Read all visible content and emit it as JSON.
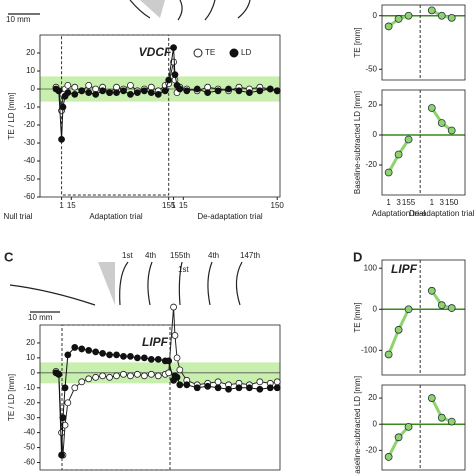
{
  "chart_data": [
    {
      "type": "line",
      "title": "VDCF",
      "ylabel": "TE / LD [mm]",
      "xlim": [
        -20,
        325
      ],
      "ylim": [
        -60,
        30
      ],
      "yticks": [
        -60,
        -50,
        -40,
        -30,
        -20,
        -10,
        0,
        10,
        20
      ],
      "xticks": [
        {
          "value": 11,
          "label": "1"
        },
        {
          "value": 25,
          "label": "15"
        },
        {
          "value": 165,
          "label": "155"
        },
        {
          "value": 172,
          "label": "1"
        },
        {
          "value": 186,
          "label": "15"
        },
        {
          "value": 321,
          "label": "150"
        }
      ],
      "xlabels": [
        "Null trial",
        "Adaptation trial",
        "De-adaptation trial"
      ],
      "band": [
        -7,
        7
      ],
      "band_color": "#c9efae",
      "legend": "top-right",
      "x": [
        3,
        7,
        11,
        13,
        16,
        20,
        30,
        40,
        50,
        60,
        70,
        80,
        90,
        100,
        110,
        120,
        130,
        140,
        150,
        160,
        165,
        172,
        174,
        177,
        181,
        191,
        206,
        221,
        236,
        251,
        266,
        281,
        296,
        311,
        321
      ],
      "series": [
        {
          "name": "TE",
          "color": "#222",
          "fill": "#ffffff",
          "values": [
            1,
            -1,
            -12,
            -3,
            0,
            2,
            1,
            -1,
            2,
            0,
            1,
            -2,
            1,
            0,
            2,
            -1,
            0,
            1,
            -1,
            2,
            3,
            15,
            5,
            -2,
            1,
            0,
            -1,
            1,
            0,
            -1,
            1,
            0,
            1,
            0,
            -1
          ]
        },
        {
          "name": "LD",
          "color": "#111",
          "fill": "#111111",
          "values": [
            0,
            -1,
            -28,
            -10,
            -4,
            -2,
            -3,
            -1,
            -2,
            -3,
            -1,
            -2,
            -2,
            -1,
            -3,
            -2,
            -1,
            -2,
            -3,
            -1,
            5,
            23,
            8,
            2,
            0,
            -1,
            0,
            -2,
            -1,
            0,
            -1,
            -2,
            -1,
            0,
            -1
          ]
        }
      ]
    },
    {
      "type": "dots",
      "ylabel": "TE [mm]",
      "ylim": [
        -60,
        10
      ],
      "yticks": [
        -50,
        0
      ],
      "color": "#8fd46a",
      "values": [
        -10,
        -3,
        0,
        5,
        0,
        -2
      ]
    },
    {
      "type": "dots",
      "ylabel": "Baseline-subtracted LD [mm]",
      "ylim": [
        -40,
        30
      ],
      "yticks": [
        -20,
        0,
        20
      ],
      "color": "#8fd46a",
      "categories": [
        "1",
        "3",
        "155",
        "1",
        "3",
        "150"
      ],
      "xlabels": [
        "Adaptation trial",
        "De-adaptation trial"
      ],
      "values": [
        -25,
        -13,
        -3,
        18,
        8,
        3
      ]
    },
    {
      "type": "line",
      "title": "LIPF",
      "ylabel": "TE / LD [mm]",
      "xlim": [
        -20,
        325
      ],
      "ylim": [
        -65,
        32
      ],
      "yticks": [
        -60,
        -50,
        -40,
        -30,
        -20,
        -10,
        0,
        10,
        20
      ],
      "band": [
        -7,
        7
      ],
      "band_color": "#c9efae",
      "x": [
        3,
        7,
        11,
        13,
        16,
        20,
        30,
        40,
        50,
        60,
        70,
        80,
        90,
        100,
        110,
        120,
        130,
        140,
        150,
        160,
        165,
        172,
        174,
        177,
        181,
        191,
        206,
        221,
        236,
        251,
        266,
        281,
        296,
        311,
        321
      ],
      "series": [
        {
          "name": "TE",
          "color": "#222",
          "fill": "#ffffff",
          "values": [
            1,
            -1,
            -40,
            -55,
            -35,
            -20,
            -10,
            -6,
            -4,
            -3,
            -2,
            -3,
            -2,
            -1,
            -2,
            -1,
            -2,
            -1,
            -2,
            -1,
            0,
            44,
            25,
            10,
            2,
            -5,
            -8,
            -7,
            -6,
            -8,
            -7,
            -8,
            -6,
            -7,
            -6
          ]
        },
        {
          "name": "LD",
          "color": "#111",
          "fill": "#111111",
          "values": [
            0,
            -1,
            -55,
            -30,
            -10,
            12,
            17,
            16,
            15,
            14,
            13,
            12,
            12,
            11,
            11,
            10,
            10,
            9,
            9,
            8,
            8,
            -5,
            -2,
            -3,
            -8,
            -8,
            -10,
            -9,
            -10,
            -11,
            -10,
            -10,
            -11,
            -10,
            -10
          ]
        }
      ]
    },
    {
      "type": "dots",
      "title": "LIPF",
      "ylabel": "TE [mm]",
      "ylim": [
        -160,
        120
      ],
      "yticks": [
        -100,
        0,
        100
      ],
      "color": "#8fd46a",
      "values": [
        -110,
        -50,
        0,
        45,
        10,
        3
      ]
    },
    {
      "type": "dots",
      "ylabel": "Baseline-subtracted LD [mm]",
      "ylim": [
        -35,
        30
      ],
      "yticks": [
        -20,
        0,
        20
      ],
      "color": "#8fd46a",
      "values": [
        -25,
        -10,
        -2,
        20,
        5,
        2
      ]
    }
  ],
  "labels": {
    "scale_top": "10 mm",
    "panel_c": "C",
    "panel_d": "D",
    "traj": [
      "1st",
      "4th",
      "155th",
      "1st",
      "4th",
      "147th"
    ],
    "scale_mid": "10 mm"
  }
}
